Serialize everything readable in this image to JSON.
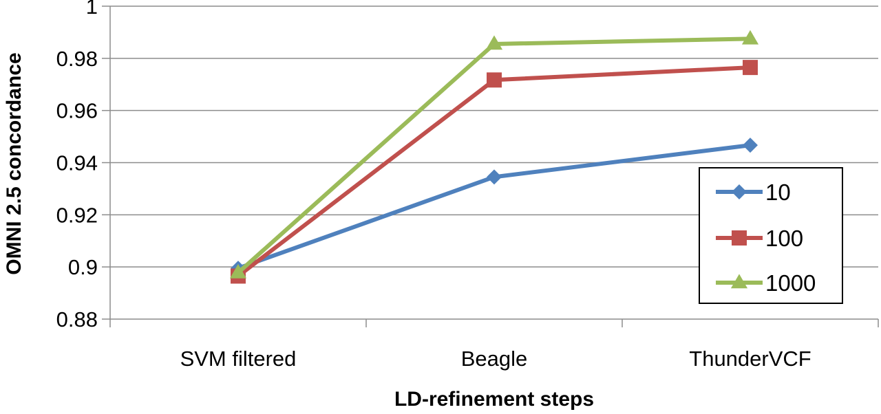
{
  "chart_data": {
    "type": "line",
    "title": "",
    "xlabel": "LD-refinement steps",
    "ylabel": "OMNI 2.5 concordance",
    "categories": [
      "SVM filtered",
      "Beagle",
      "ThunderVCF"
    ],
    "ylim": [
      0.88,
      1.0
    ],
    "yticks": [
      0.88,
      0.9,
      0.92,
      0.94,
      0.96,
      0.98,
      1
    ],
    "ytick_labels": [
      "0.88",
      "0.9",
      "0.92",
      "0.94",
      "0.96",
      "0.98",
      "1"
    ],
    "grid": true,
    "legend_position": "right",
    "series": [
      {
        "name": "10",
        "values": [
          0.8995,
          0.9345,
          0.9467
        ],
        "color": "#4f81bd",
        "marker": "diamond"
      },
      {
        "name": "100",
        "values": [
          0.8965,
          0.9717,
          0.9765
        ],
        "color": "#c0504d",
        "marker": "square"
      },
      {
        "name": "1000",
        "values": [
          0.8978,
          0.9855,
          0.9875
        ],
        "color": "#9bbb59",
        "marker": "triangle"
      }
    ]
  }
}
